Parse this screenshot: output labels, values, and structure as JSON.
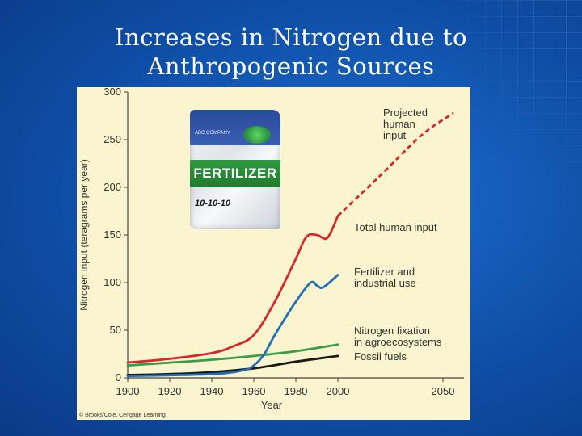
{
  "title": {
    "line1": "Increases in Nitrogen due to",
    "line2": "Anthropogenic Sources"
  },
  "photo": {
    "company": "ABC COMPANY",
    "product": "FERTILIZER",
    "grade": "10-10-10"
  },
  "credit": "© Brooks/Cole, Cengage Learning",
  "colors": {
    "total": "#d9262a",
    "fertilizer": "#1f6fb6",
    "fixation": "#3a9c47",
    "fossil": "#1a1a1a"
  },
  "chart_data": {
    "type": "line",
    "xlabel": "Year",
    "ylabel": "Nitrogen input (teragrams per year)",
    "xlim": [
      1900,
      2060
    ],
    "ylim": [
      0,
      300
    ],
    "xticks": [
      1900,
      1920,
      1940,
      1960,
      1980,
      2000,
      2050
    ],
    "yticks": [
      0,
      50,
      100,
      150,
      200,
      250,
      300
    ],
    "series": [
      {
        "name": "Total human input",
        "key": "total",
        "x": [
          1900,
          1920,
          1940,
          1950,
          1960,
          1970,
          1980,
          1985,
          1990,
          1995,
          2000
        ],
        "y": [
          16,
          20,
          26,
          33,
          45,
          80,
          125,
          148,
          150,
          147,
          170
        ]
      },
      {
        "name": "Projected human input",
        "key": "total",
        "dashed": true,
        "x": [
          2000,
          2020,
          2040,
          2055
        ],
        "y": [
          170,
          212,
          255,
          278
        ]
      },
      {
        "name": "Fertilizer and industrial use",
        "key": "fertilizer",
        "x": [
          1900,
          1940,
          1955,
          1960,
          1965,
          1970,
          1980,
          1987,
          1990,
          1993,
          2000
        ],
        "y": [
          2,
          4,
          8,
          13,
          25,
          45,
          80,
          100,
          97,
          95,
          108
        ]
      },
      {
        "name": "Nitrogen fixation in agroecosystems",
        "key": "fixation",
        "x": [
          1900,
          1920,
          1940,
          1960,
          1980,
          2000
        ],
        "y": [
          13,
          16,
          19,
          23,
          28,
          35
        ]
      },
      {
        "name": "Fossil fuels",
        "key": "fossil",
        "x": [
          1900,
          1920,
          1940,
          1960,
          1980,
          2000
        ],
        "y": [
          3,
          4,
          6,
          10,
          17,
          23
        ]
      }
    ],
    "annotations": [
      {
        "key": "projected",
        "lines": [
          "Projected",
          "human",
          "input"
        ]
      },
      {
        "key": "total",
        "lines": [
          "Total human input"
        ]
      },
      {
        "key": "fertilizer",
        "lines": [
          "Fertilizer and",
          "industrial use"
        ]
      },
      {
        "key": "fixation",
        "lines": [
          "Nitrogen fixation",
          "in agroecosystems"
        ]
      },
      {
        "key": "fossil",
        "lines": [
          "Fossil fuels"
        ]
      }
    ]
  }
}
